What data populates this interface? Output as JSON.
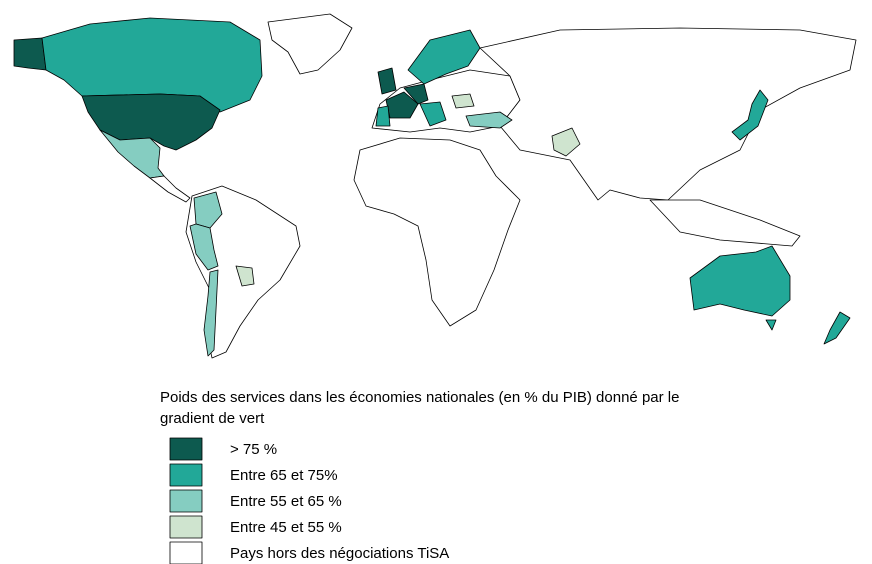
{
  "legend": {
    "title_lines": [
      "Poids des services dans les économies nationales (en % du PIB) donné par le",
      "gradient de vert"
    ],
    "items": [
      {
        "label": "> 75 %",
        "color": "#0d5a4f"
      },
      {
        "label": "Entre 65 et 75%",
        "color": "#22a898"
      },
      {
        "label": "Entre 55 et 65 %",
        "color": "#85cdc1"
      },
      {
        "label": "Entre 45 et 55 %",
        "color": "#cfe4cf"
      },
      {
        "label": "Pays hors des négociations TiSA",
        "color": "#ffffff"
      }
    ]
  }
}
